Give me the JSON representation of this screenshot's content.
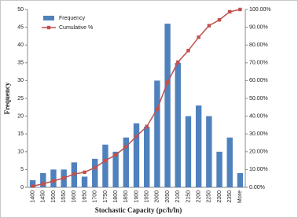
{
  "chart_data": {
    "type": "bar-line",
    "x_label": "Stochastic Capacity (pc/h/ln)",
    "y_label": "Frequency",
    "categories": [
      "1400",
      "1450",
      "1500",
      "1550",
      "1600",
      "1650",
      "1700",
      "1750",
      "1800",
      "1850",
      "1900",
      "1950",
      "2000",
      "2050",
      "2100",
      "2150",
      "2200",
      "2250",
      "2300",
      "2350",
      "More"
    ],
    "series": [
      {
        "name": "Frequency",
        "type": "bar",
        "color": "#4f81bd",
        "values": [
          2,
          4,
          5,
          5,
          7,
          3,
          8,
          12,
          10,
          14,
          18,
          17,
          30,
          46,
          35,
          20,
          23,
          20,
          10,
          14,
          4
        ]
      },
      {
        "name": "Cumulative %",
        "type": "line",
        "axis": "y2",
        "color": "#c0504d",
        "values": [
          0.65,
          1.95,
          3.58,
          5.21,
          7.49,
          8.47,
          11.07,
          14.98,
          18.24,
          22.8,
          28.66,
          34.2,
          43.97,
          58.96,
          70.36,
          76.87,
          84.36,
          90.88,
          94.14,
          98.7,
          100
        ]
      }
    ],
    "ylim": [
      0,
      50
    ],
    "yticks": [
      0,
      5,
      10,
      15,
      20,
      25,
      30,
      35,
      40,
      45,
      50
    ],
    "y2lim": [
      0,
      100
    ],
    "y2ticks": [
      {
        "value": 0,
        "label": "0.00%"
      },
      {
        "value": 10,
        "label": "10.00%"
      },
      {
        "value": 20,
        "label": "20.00%"
      },
      {
        "value": 30,
        "label": "30.00%"
      },
      {
        "value": 40,
        "label": "40.00%"
      },
      {
        "value": 50,
        "label": "50.00%"
      },
      {
        "value": 60,
        "label": "60.00%"
      },
      {
        "value": 70,
        "label": "70.00%"
      },
      {
        "value": 80,
        "label": "80.00%"
      },
      {
        "value": 90,
        "label": "90.00%"
      },
      {
        "value": 100,
        "label": "100.00%"
      }
    ],
    "legend": "top-left"
  }
}
